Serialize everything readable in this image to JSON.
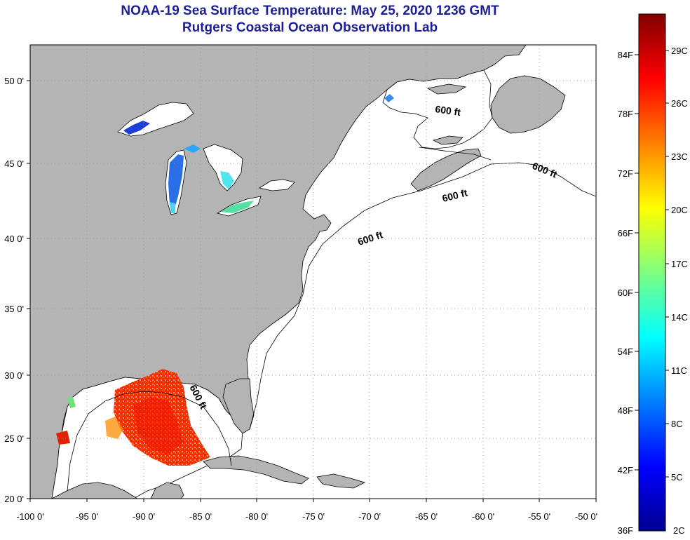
{
  "title": "NOAA-19 Sea Surface Temperature:  May 25, 2020 1236 GMT",
  "subtitle": "Rutgers Coastal Ocean Observation Lab",
  "map": {
    "lat_labels": [
      "50 0'",
      "45 0'",
      "40 0'",
      "35 0'",
      "30 0'",
      "25 0'",
      "20 0'"
    ],
    "lon_labels": [
      "-100 0'",
      "-95 0'",
      "-90 0'",
      "-85 0'",
      "-80 0'",
      "-75 0'",
      "-70 0'",
      "-65 0'",
      "-60 0'",
      "-55 0'",
      "-50 0'"
    ],
    "isobath_label": "600 ft",
    "colors": {
      "land": "#b4b4b4",
      "ocean": "#ffffff",
      "gridline": "#9a9a9a"
    }
  },
  "colorbar": {
    "f_labels": [
      "84F",
      "78F",
      "72F",
      "66F",
      "60F",
      "54F",
      "48F",
      "42F",
      "36F"
    ],
    "c_labels": [
      "29C",
      "26C",
      "23C",
      "20C",
      "17C",
      "14C",
      "11C",
      "8C",
      "5C",
      "2C"
    ],
    "gradient_colors": [
      "#00008f",
      "#0000ff",
      "#007fff",
      "#00ffff",
      "#7fff7f",
      "#ffff00",
      "#ff7f00",
      "#ff0000",
      "#7f0000"
    ]
  }
}
